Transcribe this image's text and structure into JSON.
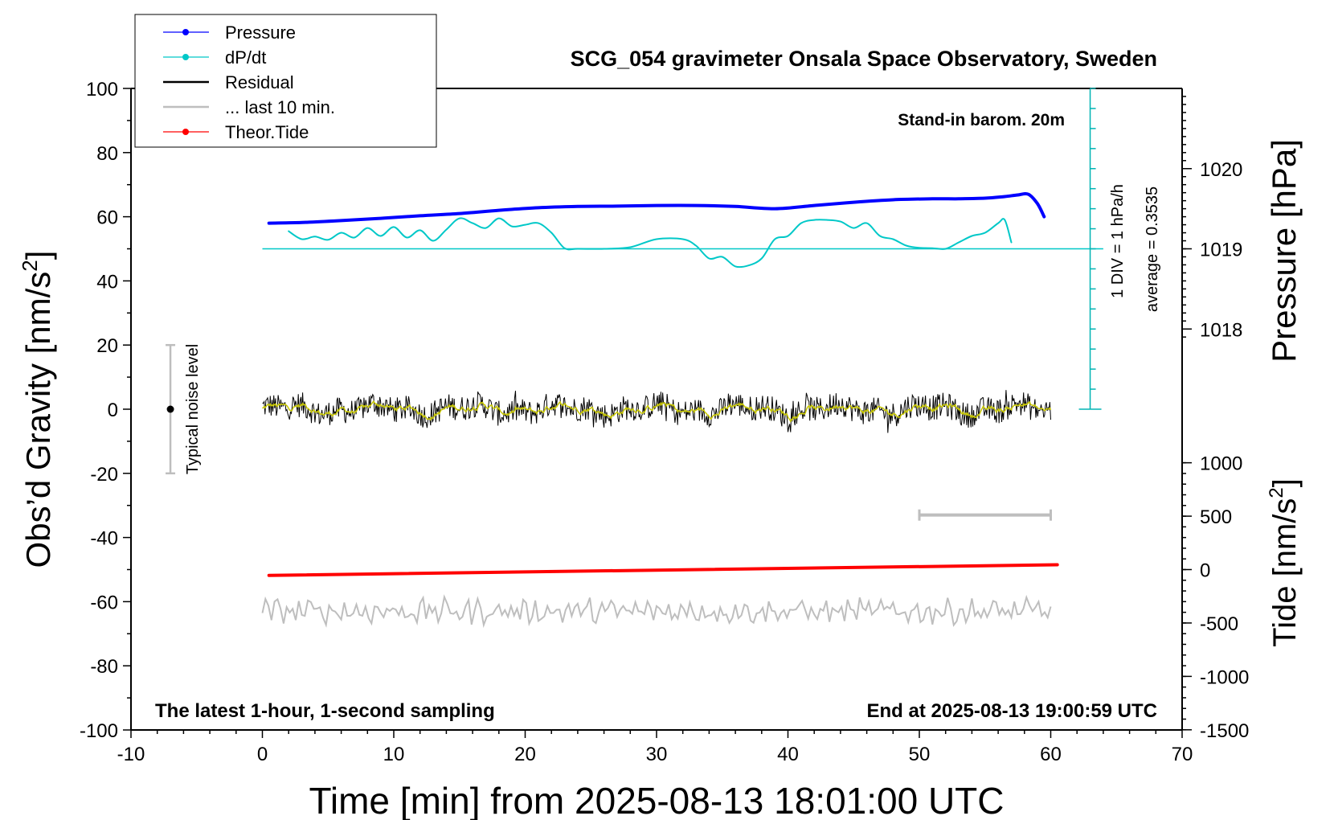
{
  "chart_data": {
    "type": "line",
    "title": "SCG_054 gravimeter Onsala Space Observatory, Sweden",
    "xlabel": "Time [min] from 2025-08-13 18:01:00 UTC",
    "ylabel_left": "Obs’d Gravity [nm/s",
    "ylabel_left_sup": "2",
    "ylabel_left_end": "]",
    "ylabel_right_pressure": "Pressure [hPa]",
    "ylabel_right_tide": "Tide [nm/s",
    "ylabel_right_tide_sup": "2",
    "ylabel_right_tide_end": "]",
    "xlim": [
      -10,
      70
    ],
    "ylim": [
      -100,
      100
    ],
    "x_ticks": [
      -10,
      0,
      10,
      20,
      30,
      40,
      50,
      60,
      70
    ],
    "x_tick_labels": [
      "-10",
      "0",
      "10",
      "20",
      "30",
      "40",
      "50",
      "60",
      "70"
    ],
    "y_ticks": [
      -100,
      -80,
      -60,
      -40,
      -20,
      0,
      20,
      40,
      60,
      80,
      100
    ],
    "y_tick_labels": [
      "-100",
      "-80",
      "-60",
      "-40",
      "-20",
      "0",
      "20",
      "40",
      "60",
      "80",
      "100"
    ],
    "pressure_ticks": [
      1018,
      1019,
      1020
    ],
    "pressure_tick_labels": [
      "1018",
      "1019",
      "1020"
    ],
    "pressure_axis_ref": {
      "hpa_1019_at_gravity": 50,
      "gravity_per_hpa": 25
    },
    "tide_ticks": [
      -1500,
      -1000,
      -500,
      0,
      500,
      1000
    ],
    "tide_tick_labels": [
      "-1500",
      "-1000",
      "-500",
      "0",
      "500",
      "1000"
    ],
    "tide_axis_ref": {
      "tide_0_at_gravity": -50,
      "gravity_per_tide": 0.0333
    },
    "grid": false,
    "legend_position": "top-left",
    "legend": [
      {
        "label": "Pressure",
        "color": "#0000ff",
        "marker": true
      },
      {
        "label": "dP/dt",
        "color": "#00c8c8",
        "marker": true
      },
      {
        "label": "Residual",
        "color": "#000000",
        "marker": false
      },
      {
        "label": "... last 10 min.",
        "color": "#bebebe",
        "marker": false
      },
      {
        "label": "Theor.Tide",
        "color": "#ff0000",
        "marker": true
      }
    ],
    "annotations": {
      "stand_in": "Stand-in barom. 20m",
      "div_label": "1 DIV = 1 hPa/h",
      "average_label": "average = 0.3535",
      "noise_label": "Typical noise level",
      "bottom_left": "The latest 1-hour, 1-second sampling",
      "bottom_right": "End at 2025-08-13 19:00:59 UTC"
    },
    "noise_bar": {
      "x": -7,
      "center": 0,
      "half_range": 20
    },
    "last10_bar": {
      "x_start": 50,
      "x_end": 60,
      "y": -33
    },
    "dpdt_baseline": 50,
    "dpdt_scale_bar": {
      "x": 63,
      "ymin": 0,
      "ymax": 100,
      "div": 6.25
    },
    "series": [
      {
        "name": "Pressure",
        "color": "#0000ff",
        "width": 4,
        "x": [
          0.5,
          3,
          6,
          9,
          12,
          15,
          18,
          21,
          24,
          27,
          30,
          33,
          36,
          39,
          42,
          45,
          48,
          51,
          53,
          55,
          56.5,
          57.5,
          58.3,
          59,
          59.5
        ],
        "y": [
          58,
          58.2,
          58.8,
          59.5,
          60.3,
          61,
          62,
          62.8,
          63.2,
          63.3,
          63.5,
          63.5,
          63.2,
          62.5,
          63.5,
          64.5,
          65.3,
          65.6,
          65.6,
          65.8,
          66.3,
          66.8,
          67,
          64,
          60
        ]
      },
      {
        "name": "dP/dt",
        "color": "#00c8c8",
        "width": 2,
        "x": [
          2,
          3,
          4,
          5,
          6,
          7,
          8,
          9,
          10,
          11,
          12,
          13,
          14,
          15,
          16,
          17,
          18,
          19,
          20,
          21,
          22,
          23,
          24,
          26,
          28,
          30,
          32,
          33,
          34,
          35,
          36,
          37,
          38,
          39,
          40,
          41,
          42,
          43,
          44,
          45,
          46,
          47,
          48,
          49,
          50,
          51,
          52,
          53,
          54,
          55,
          56,
          56.5,
          57
        ],
        "y": [
          55.5,
          53,
          53.8,
          52.8,
          55,
          53.5,
          56.5,
          54,
          56.8,
          53.5,
          55.8,
          52.5,
          56,
          59.5,
          58,
          56.5,
          59.5,
          57,
          57.5,
          58,
          55,
          50.2,
          50,
          50,
          50.5,
          53,
          53,
          51,
          47,
          47.5,
          44.5,
          44.8,
          47,
          53,
          54,
          58,
          59,
          59,
          58.5,
          56.5,
          58,
          54,
          53,
          51,
          50.3,
          50.2,
          50,
          52,
          54,
          55,
          58,
          59,
          52
        ]
      },
      {
        "name": "Theor.Tide",
        "color": "#ff0000",
        "width": 4,
        "x": [
          0.5,
          60.5
        ],
        "y": [
          -51.8,
          -48.5
        ]
      }
    ]
  }
}
